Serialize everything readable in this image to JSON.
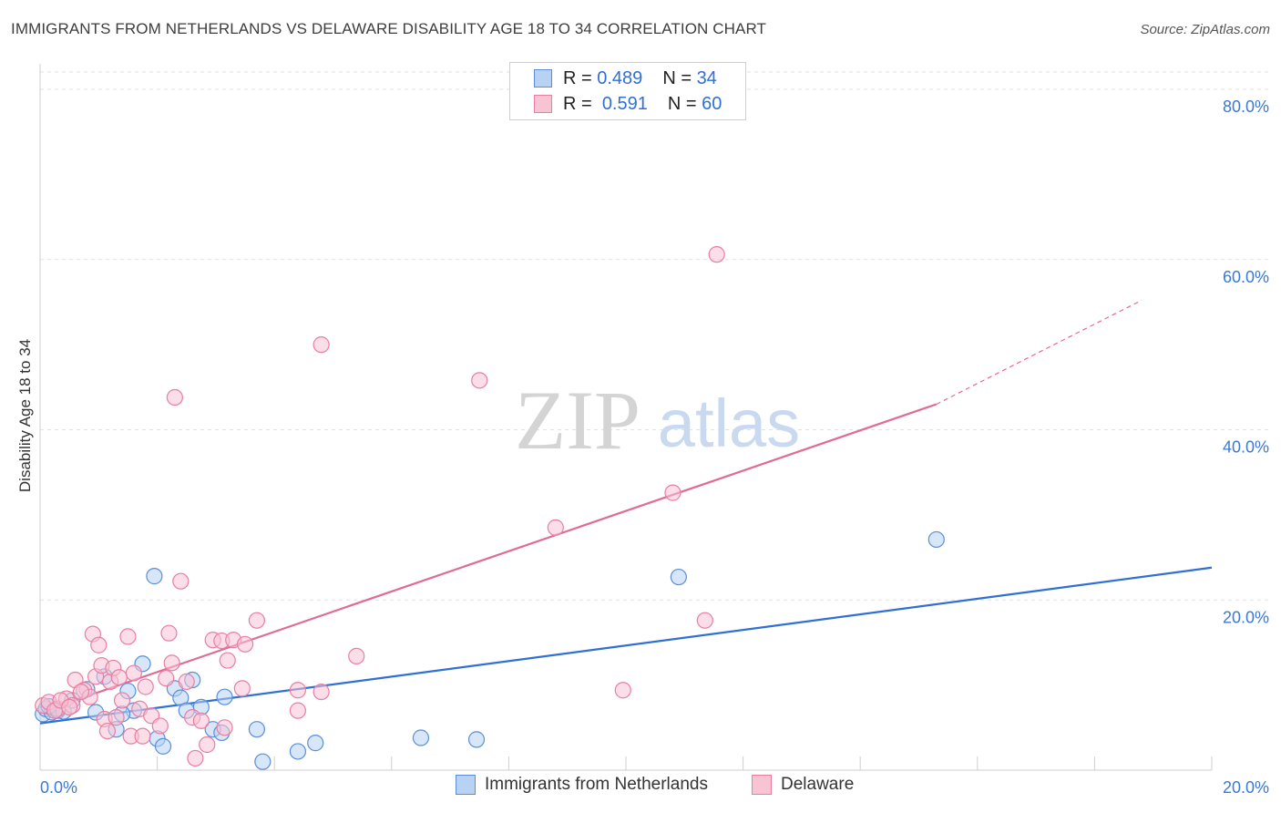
{
  "title": "IMMIGRANTS FROM NETHERLANDS VS DELAWARE DISABILITY AGE 18 TO 34 CORRELATION CHART",
  "source": "Source: ZipAtlas.com",
  "watermark": {
    "zip": "ZIP",
    "atlas": "atlas"
  },
  "legend": {
    "r_label": "R =",
    "n_label": "N =",
    "series": [
      {
        "r": "0.489",
        "n": "34"
      },
      {
        "r": "0.591",
        "n": "60"
      }
    ]
  },
  "bottom_legend": [
    "Immigrants from Netherlands",
    "Delaware"
  ],
  "colors": {
    "blue_fill": "#b7d2f3",
    "blue_stroke": "#5a8fd8",
    "blue_line": "#2f6fd6",
    "pink_fill": "#f8c3d3",
    "pink_stroke": "#e87fa2",
    "pink_line": "#e06b93",
    "axis_label": "#3b78d8",
    "grid": "#e2e2e2"
  },
  "chart_data": {
    "type": "scatter",
    "title": "IMMIGRANTS FROM NETHERLANDS VS DELAWARE DISABILITY AGE 18 TO 34 CORRELATION CHART",
    "xlabel": "",
    "ylabel": "Disability Age 18 to 34",
    "xlim": [
      0,
      20
    ],
    "ylim": [
      0,
      83
    ],
    "x_tick_labels": [
      "0.0%",
      "20.0%"
    ],
    "y_ticks": [
      20,
      40,
      60,
      80
    ],
    "y_tick_labels": [
      "20.0%",
      "40.0%",
      "60.0%",
      "80.0%"
    ],
    "grid": true,
    "legend_position": "top-center",
    "series": [
      {
        "name": "Immigrants from Netherlands",
        "color": "#5a8fd8",
        "trend": {
          "x0": 0,
          "y0": 5.5,
          "x1": 20,
          "y1": 23.8,
          "dash_from": null
        },
        "points": [
          [
            0.05,
            6.6
          ],
          [
            0.1,
            7.2
          ],
          [
            0.2,
            6.8
          ],
          [
            0.3,
            7.0
          ],
          [
            0.55,
            8.2
          ],
          [
            0.8,
            9.5
          ],
          [
            0.95,
            6.8
          ],
          [
            1.1,
            11.0
          ],
          [
            1.3,
            4.8
          ],
          [
            1.5,
            9.3
          ],
          [
            1.75,
            12.5
          ],
          [
            1.6,
            7.0
          ],
          [
            1.95,
            22.8
          ],
          [
            2.0,
            3.7
          ],
          [
            2.1,
            2.8
          ],
          [
            2.3,
            9.6
          ],
          [
            2.4,
            8.5
          ],
          [
            2.5,
            7.0
          ],
          [
            2.6,
            10.6
          ],
          [
            2.75,
            7.4
          ],
          [
            2.95,
            4.8
          ],
          [
            3.1,
            4.4
          ],
          [
            3.15,
            8.6
          ],
          [
            3.7,
            4.8
          ],
          [
            3.8,
            1.0
          ],
          [
            4.4,
            2.2
          ],
          [
            4.7,
            3.2
          ],
          [
            6.5,
            3.8
          ],
          [
            7.45,
            3.6
          ],
          [
            10.9,
            22.7
          ],
          [
            15.3,
            27.1
          ],
          [
            0.15,
            7.5
          ],
          [
            0.4,
            6.9
          ],
          [
            1.4,
            6.6
          ]
        ]
      },
      {
        "name": "Delaware",
        "color": "#e87fa2",
        "trend": {
          "x0": 0,
          "y0": 6.8,
          "x1": 15.3,
          "y1": 43.0,
          "dash_to_x": 18.8,
          "dash_to_y": 55.2
        },
        "points": [
          [
            0.05,
            7.6
          ],
          [
            0.15,
            8.0
          ],
          [
            0.3,
            7.2
          ],
          [
            0.45,
            8.4
          ],
          [
            0.55,
            7.6
          ],
          [
            0.6,
            10.6
          ],
          [
            0.75,
            9.4
          ],
          [
            0.85,
            8.6
          ],
          [
            0.9,
            16.0
          ],
          [
            0.95,
            11.0
          ],
          [
            1.0,
            14.7
          ],
          [
            1.05,
            12.3
          ],
          [
            1.1,
            6.0
          ],
          [
            1.2,
            10.4
          ],
          [
            1.25,
            12.0
          ],
          [
            1.3,
            6.2
          ],
          [
            1.4,
            8.2
          ],
          [
            1.5,
            15.7
          ],
          [
            1.55,
            4.0
          ],
          [
            1.6,
            11.4
          ],
          [
            1.7,
            7.2
          ],
          [
            1.75,
            4.0
          ],
          [
            1.8,
            9.8
          ],
          [
            1.9,
            6.4
          ],
          [
            2.05,
            5.2
          ],
          [
            2.15,
            10.8
          ],
          [
            2.2,
            16.1
          ],
          [
            2.25,
            12.6
          ],
          [
            2.3,
            43.8
          ],
          [
            2.4,
            22.2
          ],
          [
            2.5,
            10.4
          ],
          [
            2.6,
            6.2
          ],
          [
            2.65,
            1.4
          ],
          [
            2.75,
            5.8
          ],
          [
            2.85,
            3.0
          ],
          [
            2.95,
            15.3
          ],
          [
            3.1,
            15.2
          ],
          [
            3.15,
            5.0
          ],
          [
            3.2,
            12.9
          ],
          [
            3.3,
            15.3
          ],
          [
            3.45,
            9.6
          ],
          [
            3.5,
            14.8
          ],
          [
            3.7,
            17.6
          ],
          [
            4.4,
            9.4
          ],
          [
            4.4,
            7.0
          ],
          [
            4.8,
            9.2
          ],
          [
            4.8,
            50.0
          ],
          [
            5.4,
            13.4
          ],
          [
            7.5,
            45.8
          ],
          [
            8.8,
            28.5
          ],
          [
            9.95,
            9.4
          ],
          [
            10.8,
            32.6
          ],
          [
            11.35,
            17.6
          ],
          [
            11.55,
            60.6
          ],
          [
            0.25,
            7.0
          ],
          [
            0.7,
            9.2
          ],
          [
            1.35,
            10.9
          ],
          [
            0.35,
            8.2
          ],
          [
            0.5,
            7.4
          ],
          [
            1.15,
            4.6
          ]
        ]
      }
    ]
  }
}
